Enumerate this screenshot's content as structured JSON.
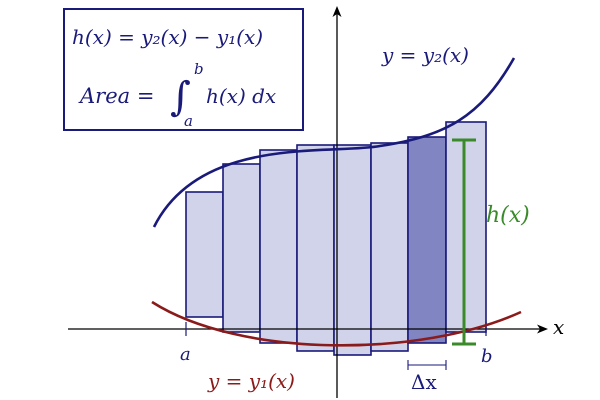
{
  "formula_box": {
    "line1": "h(x) = y₂(x) − y₁(x)",
    "area_label": "Area =",
    "integral_sign": "∫",
    "upper_limit": "b",
    "lower_limit": "a",
    "integrand": "h(x) dx"
  },
  "labels": {
    "upper_curve": "y = y₂(x)",
    "lower_curve": "y = y₁(x)",
    "height": "h(x)",
    "delta_x": "Δx",
    "x_axis": "x",
    "a": "a",
    "b": "b"
  },
  "colors": {
    "upper_curve": "#1a1a7a",
    "lower_curve": "#8b1a1a",
    "rect_fill": "#d0d3ea",
    "rect_highlight": "#8185c2",
    "rect_stroke": "#1a1a7a",
    "height_marker": "#3a8a2a",
    "formula_border": "#1a1a7a"
  }
}
